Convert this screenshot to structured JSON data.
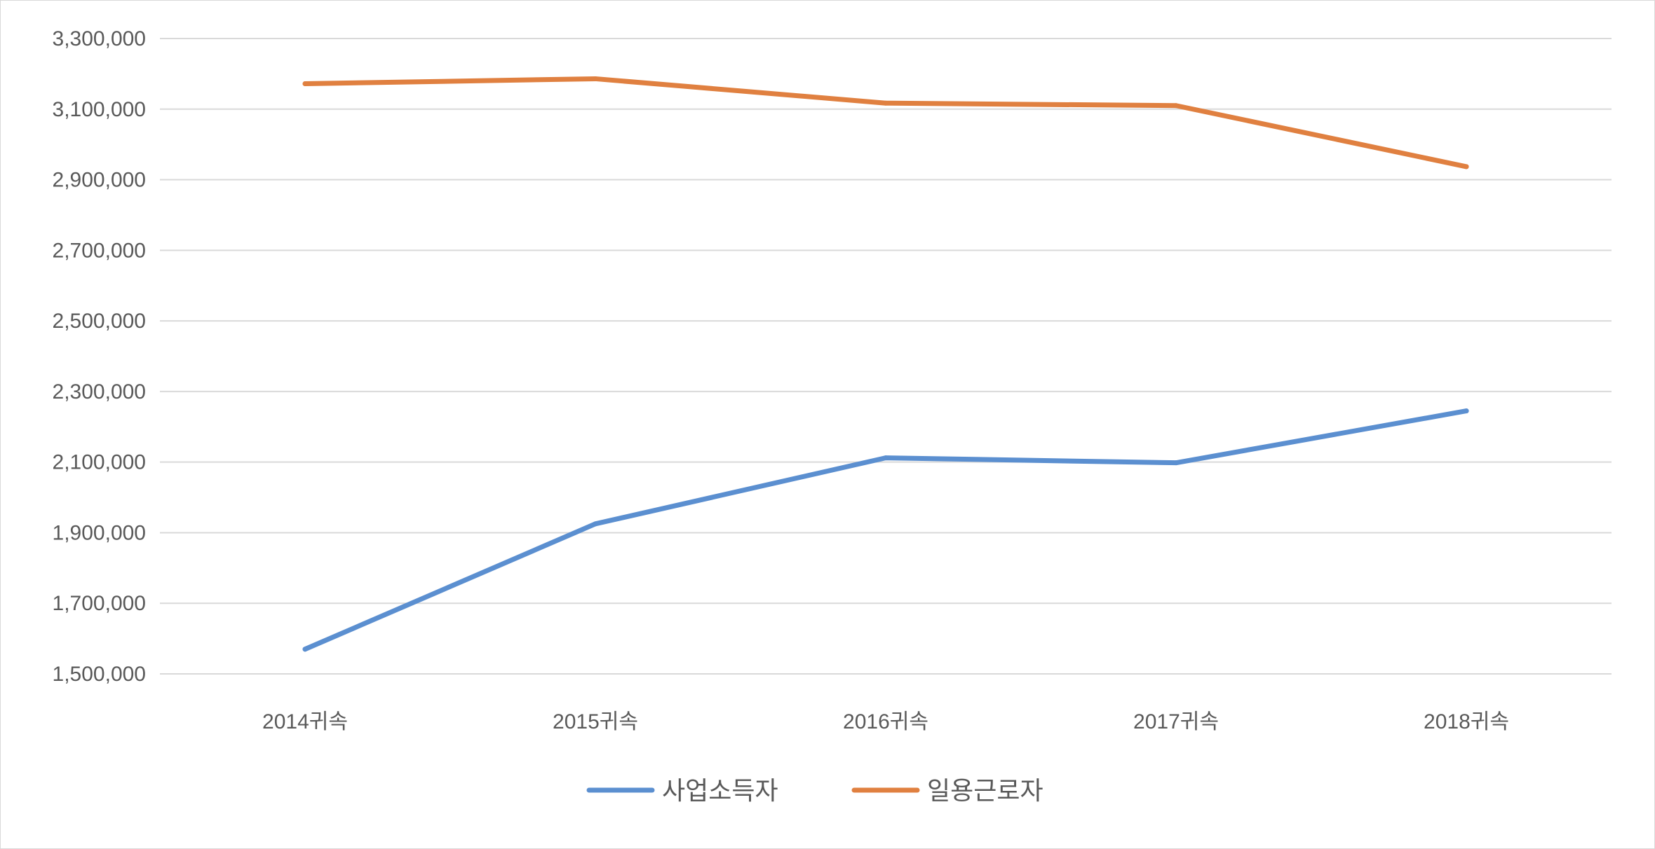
{
  "chart_data": {
    "type": "line",
    "title": "",
    "xlabel": "",
    "ylabel": "",
    "categories": [
      "2014귀속",
      "2015귀속",
      "2016귀속",
      "2017귀속",
      "2018귀속"
    ],
    "series": [
      {
        "name": "사업소득자",
        "color": "#5b8fd0",
        "values": [
          1570000,
          1925000,
          2112000,
          2098000,
          2245000
        ]
      },
      {
        "name": "일용근로자",
        "color": "#e08040",
        "values": [
          3172000,
          3186000,
          3117000,
          3110000,
          2937000
        ]
      }
    ],
    "ylim": [
      1500000,
      3300000
    ],
    "yticks": [
      "1,500,000",
      "1,700,000",
      "1,900,000",
      "2,100,000",
      "2,300,000",
      "2,500,000",
      "2,700,000",
      "2,900,000",
      "3,100,000",
      "3,300,000"
    ],
    "grid": true,
    "legend_position": "bottom-center"
  }
}
